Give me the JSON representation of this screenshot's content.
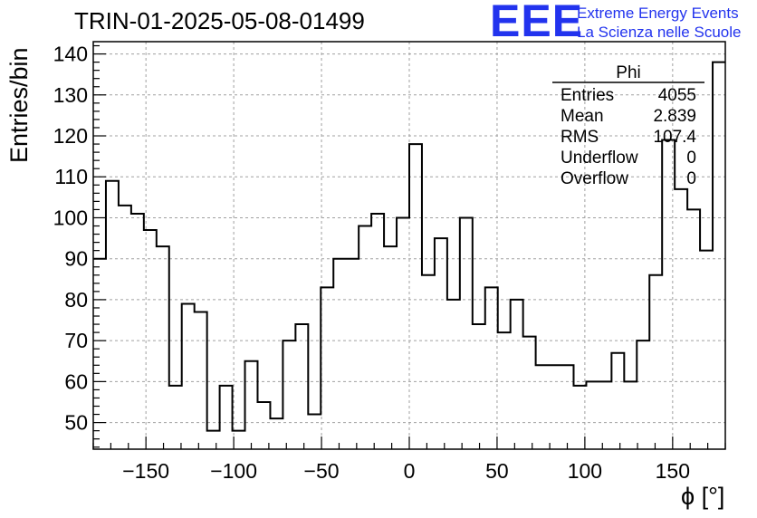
{
  "header": {
    "title": "TRIN-01-2025-05-08-01499",
    "logo_text": "EEE",
    "logo_line1": "Extreme Energy Events",
    "logo_line2": "La Scienza nelle Scuole",
    "logo_color": "#2233ee"
  },
  "stats": {
    "name": "Phi",
    "rows": [
      {
        "label": "Entries",
        "value": "4055"
      },
      {
        "label": "Mean",
        "value": "2.839"
      },
      {
        "label": "RMS",
        "value": "107.4"
      },
      {
        "label": "Underflow",
        "value": "0"
      },
      {
        "label": "Overflow",
        "value": "0"
      }
    ]
  },
  "chart_data": {
    "type": "bar",
    "style": "step-histogram",
    "xlabel": "ϕ [°]",
    "ylabel": "Entries/bin",
    "xlim": [
      -180,
      180
    ],
    "ylim": [
      43.5,
      143
    ],
    "grid": true,
    "bin_edges": [
      -180,
      -172.8,
      -165.6,
      -158.4,
      -151.2,
      -144,
      -136.8,
      -129.6,
      -122.4,
      -115.2,
      -108,
      -100.8,
      -93.6,
      -86.4,
      -79.2,
      -72,
      -64.8,
      -57.6,
      -50.4,
      -43.2,
      -36,
      -28.8,
      -21.6,
      -14.4,
      -7.2,
      0,
      7.2,
      14.4,
      21.6,
      28.8,
      36,
      43.2,
      50.4,
      57.6,
      64.8,
      72,
      79.2,
      86.4,
      93.6,
      100.8,
      108,
      115.2,
      122.4,
      129.6,
      136.8,
      144,
      151.2,
      158.4,
      165.6,
      172.8,
      180
    ],
    "values": [
      90,
      109,
      103,
      101,
      97,
      93,
      59,
      79,
      77,
      48,
      59,
      48,
      65,
      55,
      51,
      70,
      74,
      52,
      83,
      90,
      90,
      98,
      101,
      93,
      100,
      118,
      86,
      95,
      80,
      100,
      74,
      83,
      72,
      80,
      71,
      64,
      64,
      64,
      59,
      60,
      60,
      67,
      60,
      70,
      86,
      119,
      107,
      102,
      92,
      138
    ],
    "x_ticks": [
      -150,
      -100,
      -50,
      0,
      50,
      100,
      150
    ],
    "x_tick_labels": [
      "−150",
      "−100",
      "−50",
      "0",
      "50",
      "100",
      "150"
    ],
    "y_ticks": [
      50,
      60,
      70,
      80,
      90,
      100,
      110,
      120,
      130,
      140
    ],
    "y_tick_labels": [
      "50",
      "60",
      "70",
      "80",
      "90",
      "100",
      "110",
      "120",
      "130",
      "140"
    ]
  }
}
